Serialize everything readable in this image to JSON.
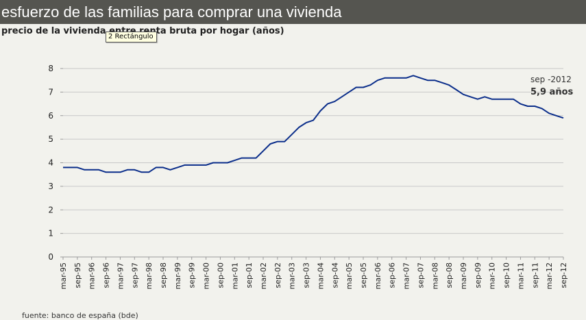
{
  "header": {
    "title": "esfuerzo de las familias para comprar una vivienda"
  },
  "tooltip": {
    "label": "2 Rectángulo"
  },
  "source": {
    "text": "fuente: banco de españa (bde)"
  },
  "colors": {
    "line": "#0a2d8a",
    "grid": "#c8c8c8",
    "title_bg": "#555550",
    "background": "#f2f2ed"
  },
  "chart_data": {
    "type": "line",
    "title": "precio de la vivienda entre renta bruta por hogar (años)",
    "xlabel": "",
    "ylabel": "",
    "ylim": [
      0,
      8
    ],
    "yticks": [
      0,
      1,
      2,
      3,
      4,
      5,
      6,
      7,
      8
    ],
    "grid": true,
    "tick_labels": [
      "mar-95",
      "sep-95",
      "mar-96",
      "sep-96",
      "mar-97",
      "sep-97",
      "mar-98",
      "sep-98",
      "mar-99",
      "sep-99",
      "mar-00",
      "sep-00",
      "mar-01",
      "sep-01",
      "mar-02",
      "sep-02",
      "mar-03",
      "sep-03",
      "mar-04",
      "sep-04",
      "mar-05",
      "sep-05",
      "mar-06",
      "sep-06",
      "mar-07",
      "sep-07",
      "mar-08",
      "sep-08",
      "mar-09",
      "sep-09",
      "mar-10",
      "sep-10",
      "mar-11",
      "sep-11",
      "mar-12",
      "sep-12"
    ],
    "series": [
      {
        "values": [
          3.8,
          3.8,
          3.8,
          3.7,
          3.7,
          3.7,
          3.6,
          3.6,
          3.6,
          3.7,
          3.7,
          3.6,
          3.6,
          3.8,
          3.8,
          3.7,
          3.8,
          3.9,
          3.9,
          3.9,
          3.9,
          4.0,
          4.0,
          4.0,
          4.1,
          4.2,
          4.2,
          4.2,
          4.5,
          4.8,
          4.9,
          4.9,
          5.2,
          5.5,
          5.7,
          5.8,
          6.2,
          6.5,
          6.6,
          6.8,
          7.0,
          7.2,
          7.2,
          7.3,
          7.5,
          7.6,
          7.6,
          7.6,
          7.6,
          7.7,
          7.6,
          7.5,
          7.5,
          7.4,
          7.3,
          7.1,
          6.9,
          6.8,
          6.7,
          6.8,
          6.7,
          6.7,
          6.7,
          6.7,
          6.5,
          6.4,
          6.4,
          6.3,
          6.1,
          6.0,
          5.9
        ]
      }
    ],
    "annotation": {
      "label": "sep -2012",
      "value": "5,9 años"
    }
  }
}
